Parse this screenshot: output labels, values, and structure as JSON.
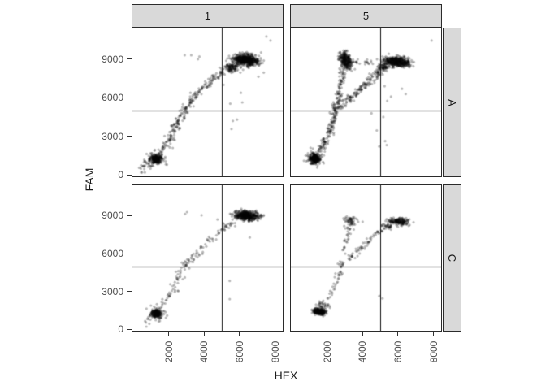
{
  "chart_data": {
    "type": "scatter",
    "title": "",
    "xlabel": "HEX",
    "ylabel": "FAM",
    "x_domain": [
      -50,
      8430
    ],
    "y_domain": [
      -100,
      11400
    ],
    "x_ticks": [
      2000,
      4000,
      6000,
      8000
    ],
    "y_ticks": [
      0,
      3000,
      6000,
      9000
    ],
    "facet_cols": [
      "1",
      "5"
    ],
    "facet_rows": [
      "A",
      "C"
    ],
    "legend": "none",
    "grid": "off",
    "thresholds": {
      "x": 5000,
      "y": 5000
    },
    "style": {
      "point_color": "#000000",
      "point_alpha": 0.27,
      "point_radius": 1.6,
      "strip_fill": "#d9d9d9",
      "panel_border": "#2b2b2b",
      "threshold_color": "#111111",
      "tick_text_color": "#4d4d4d",
      "title_text_color": "#1a1a1a"
    },
    "panels": [
      {
        "col": "1",
        "row": "A",
        "seed": 101,
        "blobs": [
          [
            1310,
            1230,
            150,
            140,
            260,
            0
          ],
          [
            1310,
            1230,
            300,
            300,
            50,
            0
          ],
          [
            6350,
            8950,
            360,
            210,
            620,
            -8
          ],
          [
            5600,
            8350,
            230,
            170,
            70,
            -15
          ]
        ],
        "curves": [
          {
            "path": [
              [
                500,
                450
              ],
              [
                900,
                900
              ],
              [
                1500,
                1600
              ],
              [
                2000,
                2700
              ],
              [
                2350,
                3700
              ],
              [
                2700,
                4700
              ],
              [
                3100,
                5500
              ],
              [
                3600,
                6400
              ],
              [
                4200,
                7100
              ],
              [
                4800,
                7800
              ],
              [
                5300,
                8200
              ],
              [
                5900,
                8600
              ]
            ],
            "n": 330,
            "jx": 130,
            "jy": 160
          }
        ],
        "points": [
          [
            2900,
            9320
          ],
          [
            3270,
            9320
          ],
          [
            3650,
            9010
          ],
          [
            3730,
            9210
          ],
          [
            5090,
            7020
          ],
          [
            6070,
            6400
          ],
          [
            5470,
            5550
          ],
          [
            6150,
            5650
          ],
          [
            5620,
            4210
          ],
          [
            5850,
            4310
          ],
          [
            5540,
            3580
          ],
          [
            7360,
            8900
          ],
          [
            7510,
            10770
          ],
          [
            7740,
            10460
          ],
          [
            7210,
            9530
          ],
          [
            7060,
            7650
          ],
          [
            7360,
            7970
          ],
          [
            330,
            570
          ],
          [
            560,
            680
          ]
        ]
      },
      {
        "col": "5",
        "row": "A",
        "seed": 202,
        "blobs": [
          [
            1300,
            1300,
            150,
            170,
            300,
            0
          ],
          [
            1300,
            1300,
            280,
            300,
            50,
            0
          ],
          [
            3050,
            8900,
            150,
            330,
            300,
            15
          ],
          [
            5950,
            8800,
            380,
            190,
            520,
            -7
          ],
          [
            5150,
            8350,
            200,
            150,
            60,
            -20
          ]
        ],
        "curves": [
          {
            "path": [
              [
                1500,
                1800
              ],
              [
                1900,
                2700
              ],
              [
                2150,
                3600
              ],
              [
                2400,
                4600
              ],
              [
                2520,
                5200
              ]
            ],
            "n": 130,
            "jx": 110,
            "jy": 140
          },
          {
            "path": [
              [
                2520,
                5200
              ],
              [
                2650,
                6100
              ],
              [
                2750,
                7000
              ],
              [
                2850,
                7900
              ],
              [
                2950,
                8500
              ]
            ],
            "n": 90,
            "jx": 100,
            "jy": 150
          },
          {
            "path": [
              [
                2520,
                5200
              ],
              [
                2900,
                5500
              ],
              [
                3300,
                6000
              ],
              [
                3750,
                6500
              ],
              [
                4200,
                7100
              ],
              [
                4700,
                7700
              ],
              [
                5100,
                8100
              ]
            ],
            "n": 150,
            "jx": 130,
            "jy": 140
          },
          {
            "path": [
              [
                3300,
                8950
              ],
              [
                3700,
                8850
              ],
              [
                4100,
                8800
              ],
              [
                4500,
                8750
              ]
            ],
            "n": 22,
            "jx": 90,
            "jy": 110
          }
        ],
        "points": [
          [
            5240,
            6910
          ],
          [
            6220,
            6710
          ],
          [
            5390,
            5770
          ],
          [
            5170,
            4520
          ],
          [
            5270,
            2640
          ],
          [
            4940,
            2230
          ],
          [
            5360,
            2330
          ],
          [
            4800,
            3470
          ],
          [
            7890,
            10460
          ],
          [
            6430,
            6300
          ],
          [
            5600,
            6100
          ],
          [
            4500,
            4800
          ]
        ]
      },
      {
        "col": "1",
        "row": "C",
        "seed": 303,
        "blobs": [
          [
            1300,
            1250,
            130,
            130,
            220,
            0
          ],
          [
            1300,
            1250,
            260,
            260,
            40,
            0
          ],
          [
            6380,
            9000,
            330,
            170,
            500,
            -6
          ]
        ],
        "curves": [
          {
            "path": [
              [
                600,
                500
              ],
              [
                1000,
                950
              ],
              [
                1600,
                1800
              ],
              [
                2100,
                2900
              ],
              [
                2500,
                3900
              ],
              [
                2900,
                4900
              ],
              [
                3300,
                5700
              ],
              [
                3800,
                6400
              ],
              [
                4400,
                7200
              ],
              [
                5000,
                7900
              ],
              [
                5500,
                8400
              ],
              [
                5900,
                8700
              ]
            ],
            "n": 150,
            "jx": 130,
            "jy": 150
          }
        ],
        "points": [
          [
            3030,
            9280
          ],
          [
            3850,
            9030
          ],
          [
            2920,
            9130
          ],
          [
            5440,
            3840
          ],
          [
            5440,
            2400
          ],
          [
            6570,
            7280
          ],
          [
            4750,
            8700
          ]
        ]
      },
      {
        "col": "5",
        "row": "C",
        "seed": 404,
        "blobs": [
          [
            1550,
            1400,
            170,
            110,
            260,
            -10
          ],
          [
            1750,
            1900,
            220,
            200,
            40,
            20
          ],
          [
            3280,
            8500,
            170,
            200,
            55,
            15
          ],
          [
            6050,
            8550,
            300,
            150,
            180,
            -8
          ],
          [
            5400,
            8150,
            200,
            120,
            30,
            -20
          ]
        ],
        "curves": [
          {
            "path": [
              [
                2100,
                2400
              ],
              [
                2400,
                3200
              ],
              [
                2600,
                4000
              ],
              [
                2750,
                4800
              ],
              [
                2850,
                5400
              ]
            ],
            "n": 40,
            "jx": 90,
            "jy": 130
          },
          {
            "path": [
              [
                2900,
                5700
              ],
              [
                3000,
                6500
              ],
              [
                3100,
                7300
              ],
              [
                3200,
                8000
              ]
            ],
            "n": 26,
            "jx": 80,
            "jy": 130
          },
          {
            "path": [
              [
                3300,
                5600
              ],
              [
                3700,
                6200
              ],
              [
                4100,
                6800
              ],
              [
                4500,
                7300
              ],
              [
                4900,
                7700
              ],
              [
                5300,
                8000
              ]
            ],
            "n": 60,
            "jx": 120,
            "jy": 130
          }
        ],
        "points": [
          [
            4940,
            2650
          ],
          [
            5120,
            2460
          ],
          [
            2600,
            5200
          ],
          [
            3700,
            8700
          ],
          [
            4000,
            8520
          ],
          [
            3500,
            7900
          ],
          [
            6600,
            8200
          ]
        ]
      }
    ]
  }
}
